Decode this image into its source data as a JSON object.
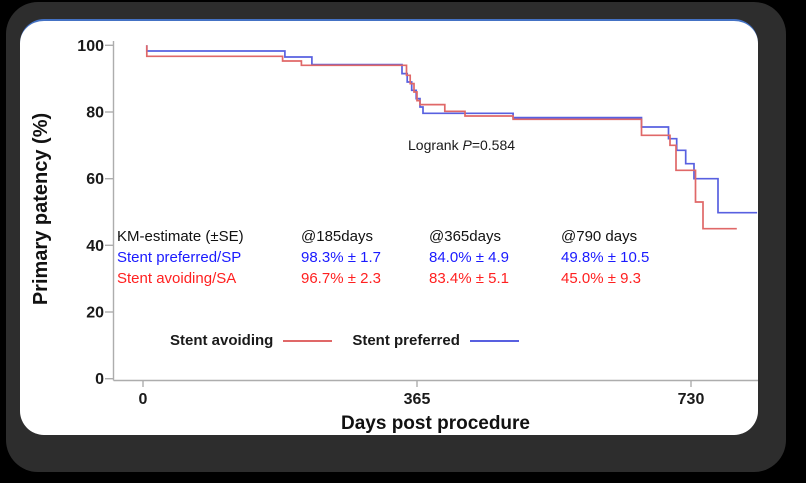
{
  "colors": {
    "curve_blue": "#5860e0",
    "curve_red": "#e06868",
    "text_blue": "#1a1aff",
    "text_red": "#ff2020",
    "panel_top_border": "#4472c4",
    "frame": "#2d2d2d",
    "axis_gray": "#adadad"
  },
  "logrank": {
    "prefix": "Logrank ",
    "p": "P",
    "rest": "=0.584"
  },
  "km_table": {
    "header": [
      "KM-estimate (±SE)",
      "@185days",
      "@365days",
      "@790 days"
    ],
    "header_color": "#111111",
    "rows": [
      {
        "label": "Stent preferred/SP",
        "color": "#1a1aff",
        "values": [
          "98.3% ± 1.7",
          "84.0% ± 4.9",
          "49.8% ± 10.5"
        ]
      },
      {
        "label": "Stent avoiding/SA",
        "color": "#ff2020",
        "values": [
          "96.7% ± 2.3",
          "83.4% ± 5.1",
          "45.0% ± 9.3"
        ]
      }
    ]
  },
  "legend": {
    "items": [
      {
        "label": "Stent avoiding",
        "color": "#e06868"
      },
      {
        "label": "Stent preferred",
        "color": "#5860e0"
      }
    ]
  },
  "chart_data": {
    "type": "line",
    "subtype": "kaplan-meier-step",
    "title": "",
    "xlabel": "Days post procedure",
    "ylabel": "Primary patency (%)",
    "xlim": [
      0,
      820
    ],
    "ylim": [
      0,
      100
    ],
    "x_ticks": [
      0,
      365,
      730
    ],
    "y_ticks": [
      0,
      20,
      40,
      60,
      80,
      100
    ],
    "grid": false,
    "legend_position": "inside-lower-left",
    "annotation": "Logrank P=0.584",
    "series": [
      {
        "id": "stent-preferred",
        "name": "Stent preferred",
        "color": "#5860e0",
        "end_x": 818,
        "points": [
          [
            5,
            100
          ],
          [
            5,
            98.3
          ],
          [
            189,
            96.5
          ],
          [
            225,
            94.2
          ],
          [
            345,
            91.5
          ],
          [
            352,
            89.0
          ],
          [
            358,
            86.5
          ],
          [
            364,
            84.0
          ],
          [
            369,
            81.5
          ],
          [
            373,
            79.6
          ],
          [
            493,
            78.3
          ],
          [
            664,
            75.5
          ],
          [
            700,
            72.0
          ],
          [
            711,
            68.5
          ],
          [
            723,
            64.5
          ],
          [
            734,
            60.0
          ],
          [
            766,
            49.8
          ]
        ]
      },
      {
        "id": "stent-avoiding",
        "name": "Stent avoiding",
        "color": "#e06868",
        "end_x": 791,
        "points": [
          [
            5,
            100
          ],
          [
            5,
            96.7
          ],
          [
            186,
            95.3
          ],
          [
            211,
            94.0
          ],
          [
            351,
            91.0
          ],
          [
            356,
            88.5
          ],
          [
            361,
            86.0
          ],
          [
            365,
            83.4
          ],
          [
            369,
            82.2
          ],
          [
            402,
            80.2
          ],
          [
            429,
            78.8
          ],
          [
            493,
            77.8
          ],
          [
            664,
            73.0
          ],
          [
            702,
            70.0
          ],
          [
            710,
            62.5
          ],
          [
            736,
            53.0
          ],
          [
            746,
            45.0
          ]
        ]
      }
    ]
  }
}
